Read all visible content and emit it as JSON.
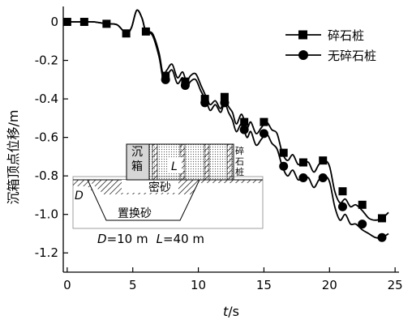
{
  "chart_data": {
    "type": "line",
    "xlabel_var": "t",
    "xlabel_unit": "/s",
    "ylabel": "沉箱顶点位移/m",
    "xlim": [
      -0.3,
      25.3
    ],
    "ylim": [
      -1.3,
      0.08
    ],
    "xticks": [
      0,
      5,
      10,
      15,
      20,
      25
    ],
    "yticks": [
      0,
      -0.2,
      -0.4,
      -0.6,
      -0.8,
      -1.0,
      -1.2
    ],
    "xtick_labels": [
      "0",
      "5",
      "10",
      "15",
      "20",
      "25"
    ],
    "ytick_labels": [
      "0",
      "-0.2",
      "-0.4",
      "-0.6",
      "-0.8",
      "-1.0",
      "-1.2"
    ],
    "legend_position": "top-right",
    "series": [
      {
        "name": "碎石桩",
        "marker": "square",
        "x": [
          0,
          1,
          2,
          3,
          3.8,
          4.5,
          4.9,
          5.3,
          5.7,
          6.0,
          6.5,
          7.0,
          7.3,
          7.6,
          8.0,
          8.4,
          8.8,
          9.1,
          9.4,
          9.8,
          10.2,
          10.6,
          10.9,
          11.3,
          11.7,
          12.0,
          12.3,
          12.6,
          12.9,
          13.3,
          13.7,
          14.0,
          14.4,
          14.8,
          15.2,
          15.6,
          16.0,
          16.4,
          16.8,
          17.2,
          17.6,
          18.0,
          18.4,
          18.8,
          19.2,
          19.6,
          20.0,
          20.4,
          20.8,
          21.2,
          21.6,
          22.0,
          22.5,
          23.0,
          23.5,
          24.0,
          24.5
        ],
        "y": [
          0,
          0,
          0,
          -0.01,
          -0.015,
          -0.06,
          -0.03,
          0.06,
          0.02,
          -0.05,
          -0.06,
          -0.16,
          -0.27,
          -0.25,
          -0.22,
          -0.29,
          -0.26,
          -0.31,
          -0.28,
          -0.27,
          -0.33,
          -0.39,
          -0.43,
          -0.41,
          -0.45,
          -0.39,
          -0.44,
          -0.47,
          -0.53,
          -0.48,
          -0.55,
          -0.52,
          -0.58,
          -0.55,
          -0.52,
          -0.56,
          -0.58,
          -0.68,
          -0.72,
          -0.69,
          -0.74,
          -0.73,
          -0.73,
          -0.78,
          -0.74,
          -0.72,
          -0.75,
          -0.88,
          -0.94,
          -0.92,
          -0.96,
          -0.95,
          -0.98,
          -1.02,
          -1.03,
          -1.02,
          -0.99
        ],
        "marker_x": [
          0,
          1.3,
          3,
          4.5,
          6,
          7.5,
          9,
          10.5,
          12,
          13.5,
          15,
          16.5,
          18,
          19.5,
          21,
          22.5,
          24
        ],
        "marker_y": [
          0,
          0,
          -0.01,
          -0.06,
          -0.05,
          -0.28,
          -0.31,
          -0.4,
          -0.39,
          -0.52,
          -0.52,
          -0.68,
          -0.73,
          -0.72,
          -0.88,
          -0.95,
          -1.02
        ]
      },
      {
        "name": "无碎石桩",
        "marker": "circle",
        "x": [
          0,
          1,
          2,
          3,
          3.8,
          4.5,
          4.9,
          5.3,
          5.7,
          6.0,
          6.5,
          7.0,
          7.3,
          7.6,
          8.0,
          8.4,
          8.8,
          9.1,
          9.4,
          9.8,
          10.2,
          10.6,
          10.9,
          11.3,
          11.7,
          12.0,
          12.3,
          12.6,
          12.9,
          13.3,
          13.7,
          14.0,
          14.4,
          14.8,
          15.2,
          15.6,
          16.0,
          16.4,
          16.8,
          17.2,
          17.6,
          18.0,
          18.4,
          18.8,
          19.2,
          19.6,
          20.0,
          20.4,
          20.8,
          21.2,
          21.6,
          22.0,
          22.5,
          23.0,
          23.5,
          24.0,
          24.5
        ],
        "y": [
          0,
          0,
          0,
          -0.01,
          -0.015,
          -0.06,
          -0.03,
          0.06,
          0.02,
          -0.05,
          -0.07,
          -0.18,
          -0.29,
          -0.28,
          -0.25,
          -0.32,
          -0.29,
          -0.34,
          -0.31,
          -0.3,
          -0.36,
          -0.41,
          -0.46,
          -0.43,
          -0.47,
          -0.42,
          -0.47,
          -0.51,
          -0.57,
          -0.53,
          -0.6,
          -0.57,
          -0.64,
          -0.61,
          -0.58,
          -0.63,
          -0.66,
          -0.75,
          -0.8,
          -0.77,
          -0.82,
          -0.81,
          -0.81,
          -0.86,
          -0.82,
          -0.8,
          -0.83,
          -0.96,
          -1.03,
          -1.0,
          -1.05,
          -1.05,
          -1.08,
          -1.1,
          -1.12,
          -1.12,
          -1.1
        ],
        "marker_x": [
          7.5,
          9,
          10.5,
          12,
          13.5,
          15,
          16.5,
          18,
          19.5,
          21,
          22.5,
          24
        ],
        "marker_y": [
          -0.3,
          -0.33,
          -0.42,
          -0.42,
          -0.56,
          -0.58,
          -0.75,
          -0.81,
          -0.81,
          -0.96,
          -1.05,
          -1.12
        ]
      }
    ],
    "inset": {
      "caisson_label": "沉箱",
      "pile_label": "碎石桩",
      "length_symbol": "L",
      "depth_symbol": "D",
      "dense_sand_label": "密砂",
      "replacement_sand_label": "置换砂",
      "formula_D_var": "D",
      "formula_D_val": "=10 m",
      "formula_L_var": "L",
      "formula_L_val": "=40 m"
    }
  }
}
